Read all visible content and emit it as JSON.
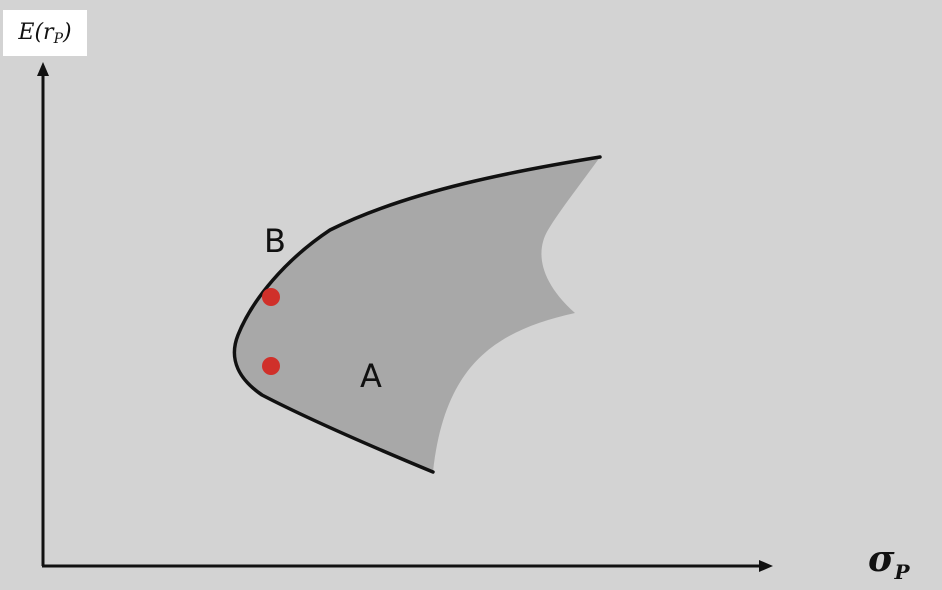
{
  "axes": {
    "y_label_main": "E(r",
    "y_label_sub": "P",
    "y_label_close": ")",
    "x_label_main": "σ",
    "x_label_sub": "P"
  },
  "points": [
    {
      "label": "B",
      "color": "#d0302a"
    },
    {
      "label": "A",
      "color": "#d0302a"
    }
  ],
  "colors": {
    "background": "#d3d3d3",
    "region_fill": "#a8a8a8",
    "frontier": "#111111",
    "axis": "#111111"
  }
}
